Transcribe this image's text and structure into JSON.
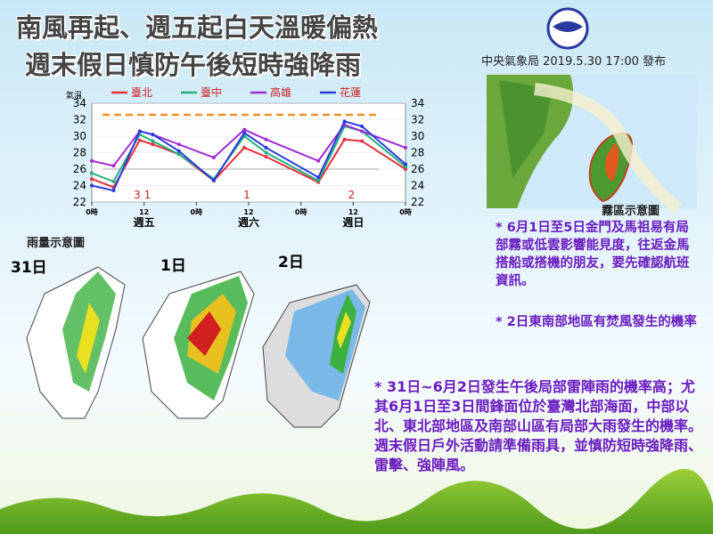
{
  "header": {
    "title_lines": [
      "南風再起、週五起白天溫暖偏熱",
      "週末假日慎防午後短時強降雨"
    ],
    "issuer": "中央氣象局 2019.5.30 17:00 發布"
  },
  "chart_data": {
    "type": "line",
    "y_label": "氣溫",
    "x": [
      0,
      5,
      11,
      14,
      20,
      28,
      35,
      40,
      52,
      58,
      62,
      72
    ],
    "series": [
      {
        "name": "臺北",
        "color": "#e8303a",
        "values": [
          24.8,
          23.8,
          29.5,
          29.0,
          27.8,
          24.6,
          28.6,
          27.5,
          24.4,
          29.6,
          29.4,
          26.0
        ]
      },
      {
        "name": "臺中",
        "color": "#22b07a",
        "values": [
          25.5,
          24.5,
          30.2,
          29.4,
          27.8,
          24.8,
          30.0,
          28.0,
          24.6,
          31.2,
          30.6,
          26.3
        ]
      },
      {
        "name": "高雄",
        "color": "#a02ad8",
        "values": [
          27.0,
          26.4,
          30.6,
          30.2,
          29.0,
          27.4,
          30.8,
          29.6,
          27.0,
          31.4,
          30.6,
          28.6
        ]
      },
      {
        "name": "花蓮",
        "color": "#2a3ae0",
        "values": [
          24.0,
          23.4,
          30.6,
          30.2,
          28.2,
          24.6,
          30.4,
          28.6,
          25.0,
          31.8,
          31.2,
          26.6
        ]
      }
    ],
    "xlim": [
      0,
      72
    ],
    "xticks": [
      {
        "value": 0,
        "label": "0時"
      },
      12,
      {
        "value": 24,
        "label": "0時"
      },
      {
        "value": 36,
        "label": "12"
      },
      {
        "value": 48,
        "label": "0時"
      },
      {
        "value": 60,
        "label": "12"
      },
      {
        "value": 72,
        "label": "0時"
      }
    ],
    "ylim": [
      22,
      34
    ],
    "yticks": [
      22,
      24,
      26,
      28,
      30,
      32,
      34
    ],
    "reference_lines": [
      {
        "value": 32.6,
        "color": "#f0902a"
      },
      {
        "value": 26,
        "color": "#aaaaaa"
      }
    ],
    "day_names": [
      "週五",
      "週六",
      "週日"
    ],
    "day_numbers": [
      "31",
      "1",
      "2"
    ]
  },
  "rain_maps": {
    "title": "雨量示意圖",
    "days": [
      "31日",
      "1日",
      "2日"
    ]
  },
  "fog": {
    "title": "霧區示意圖",
    "notes": [
      "* 6月1日至5日金門及馬祖易有局部霧或低雲影響能見度，往返金馬搭船或搭機的朋友，要先確認航班資訊。",
      "* 2日東南部地區有焚風發生的機率"
    ]
  },
  "summary": "*  31日~6月2日發生午後局部雷陣雨的機率高；尤其6月1日至3日間鋒面位於臺灣北部海面，中部以北、東北部地區及南部山區有局部大雨發生的機率。週末假日戶外活動請準備雨具，並慎防短時強降雨、雷擊、強陣風。"
}
